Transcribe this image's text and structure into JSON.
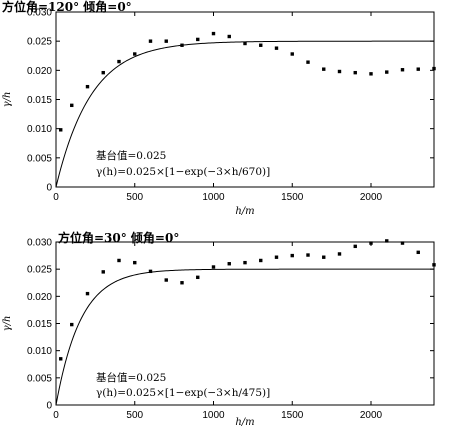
{
  "chart_data": [
    {
      "type": "scatter",
      "title": "方位角=120° 倾角=0°",
      "xlabel": "h/m",
      "ylabel": "γ/h",
      "xlim": [
        0,
        2400
      ],
      "ylim": [
        0,
        0.03
      ],
      "xticks": [
        "0",
        "500",
        "1000",
        "1500",
        "2000"
      ],
      "yticks": [
        "0",
        "0.005",
        "0.010",
        "0.015",
        "0.020",
        "0.025",
        "0.030"
      ],
      "grid": false,
      "series": [
        {
          "kind": "points",
          "x": [
            30,
            100,
            200,
            300,
            400,
            500,
            600,
            700,
            800,
            900,
            1000,
            1100,
            1200,
            1300,
            1400,
            1500,
            1600,
            1700,
            1800,
            1900,
            2000,
            2100,
            2200,
            2300,
            2400
          ],
          "y": [
            0.0098,
            0.014,
            0.0172,
            0.0196,
            0.0215,
            0.0228,
            0.025,
            0.025,
            0.0243,
            0.0253,
            0.0263,
            0.0258,
            0.0246,
            0.0243,
            0.0238,
            0.0228,
            0.0214,
            0.0202,
            0.0198,
            0.0196,
            0.0194,
            0.0197,
            0.0201,
            0.0202,
            0.0203
          ]
        },
        {
          "kind": "model",
          "model": "exponential",
          "sill": 0.025,
          "range": 670,
          "x_start": 0,
          "x_end": 2400
        }
      ],
      "annotation": {
        "line1": "基台值=0.025",
        "line2": "γ(h)=0.025×[1−exp(−3×h/670)]"
      }
    },
    {
      "type": "scatter",
      "title": "方位角=30° 倾角=0°",
      "xlabel": "h/m",
      "ylabel": "γ/h",
      "xlim": [
        0,
        2400
      ],
      "ylim": [
        0,
        0.03
      ],
      "xticks": [
        "0",
        "500",
        "1000",
        "1500",
        "2000"
      ],
      "yticks": [
        "0",
        "0.005",
        "0.010",
        "0.015",
        "0.020",
        "0.025",
        "0.030"
      ],
      "grid": false,
      "series": [
        {
          "kind": "points",
          "x": [
            30,
            100,
            200,
            300,
            400,
            500,
            600,
            700,
            800,
            900,
            1000,
            1100,
            1200,
            1300,
            1400,
            1500,
            1600,
            1700,
            1800,
            1900,
            2000,
            2100,
            2200,
            2300,
            2400
          ],
          "y": [
            0.0085,
            0.0148,
            0.0205,
            0.0245,
            0.0266,
            0.0262,
            0.0246,
            0.023,
            0.0225,
            0.0235,
            0.0254,
            0.026,
            0.0262,
            0.0266,
            0.0272,
            0.0275,
            0.0276,
            0.0272,
            0.0278,
            0.0292,
            0.0298,
            0.0302,
            0.0298,
            0.0281,
            0.0258
          ]
        },
        {
          "kind": "model",
          "model": "exponential",
          "sill": 0.025,
          "range": 475,
          "x_start": 0,
          "x_end": 2400
        }
      ],
      "annotation": {
        "line1": "基台值=0.025",
        "line2": "γ(h)=0.025×[1−exp(−3×h/475)]"
      }
    }
  ]
}
